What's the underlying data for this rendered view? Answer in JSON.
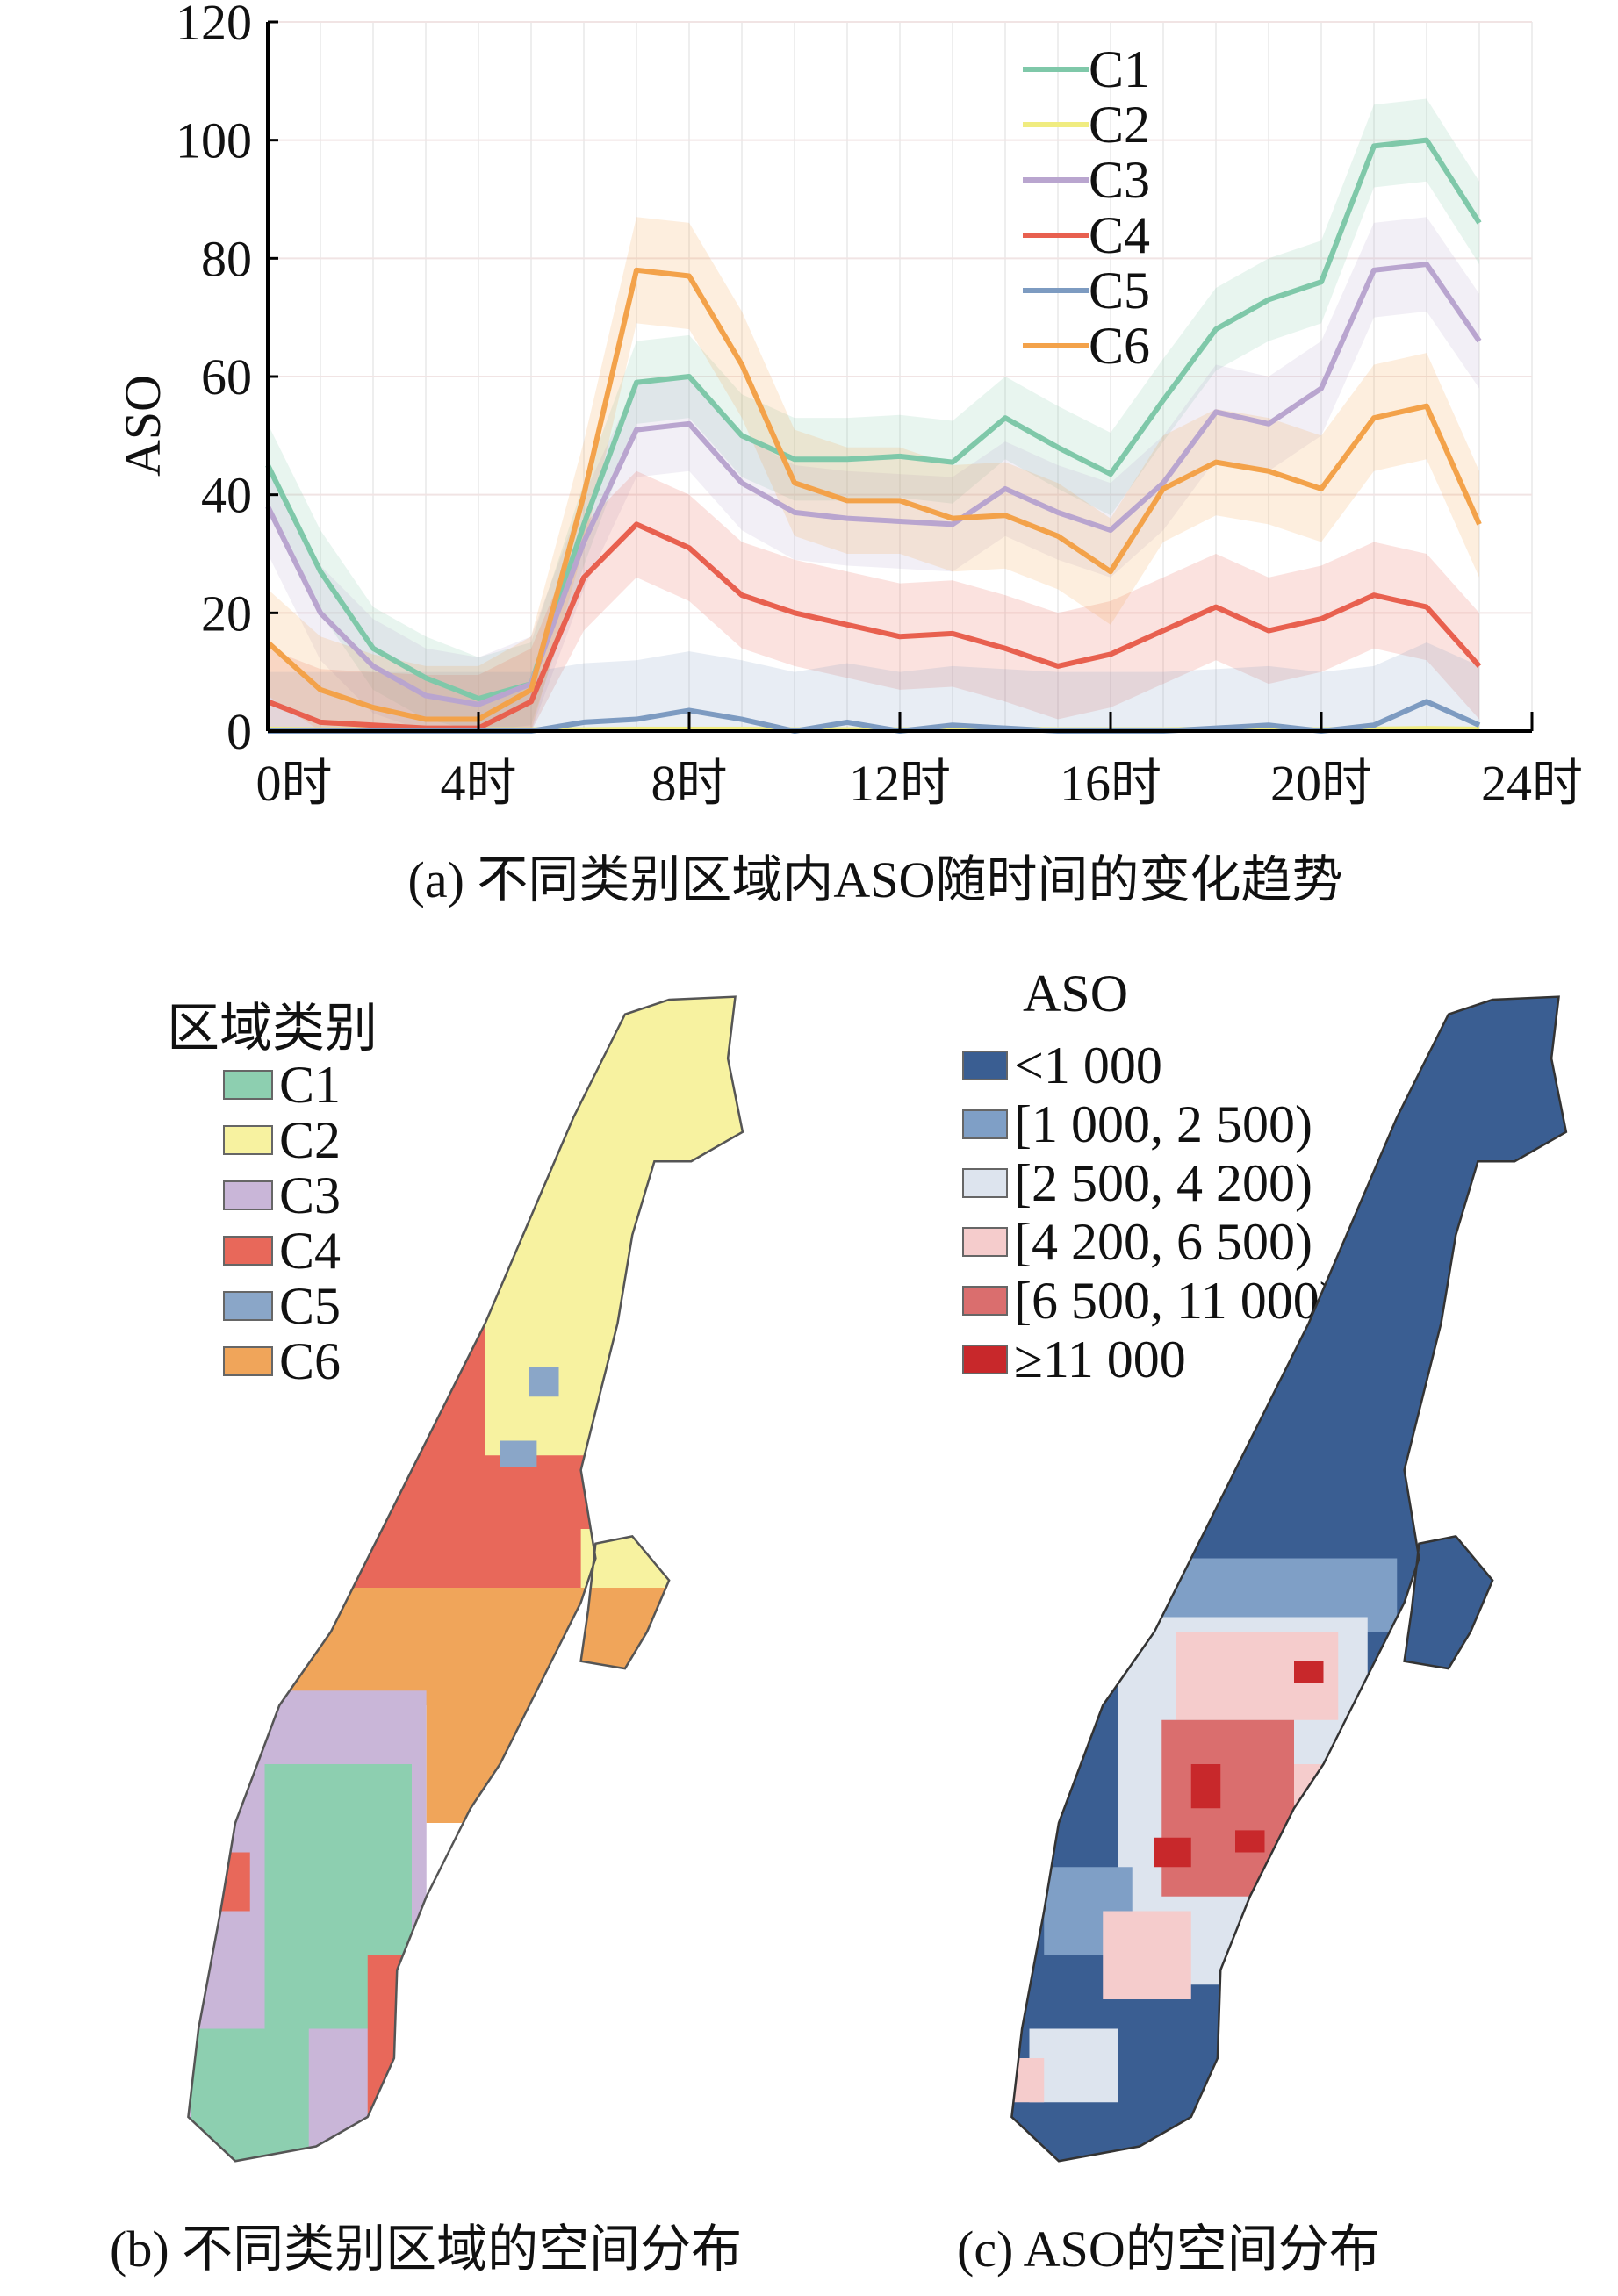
{
  "chart_data": {
    "type": "line",
    "title": "",
    "caption": "(a) 不同类别区域内ASO随时间的变化趋势",
    "xlabel": "",
    "ylabel": "ASO",
    "ylim": [
      0,
      120
    ],
    "yticks": [
      "0",
      "20",
      "40",
      "60",
      "80",
      "100",
      "120"
    ],
    "xticks": [
      "0时",
      "4时",
      "8时",
      "12时",
      "16时",
      "20时",
      "24时"
    ],
    "x": [
      0,
      1,
      2,
      3,
      4,
      5,
      6,
      7,
      8,
      9,
      10,
      11,
      12,
      13,
      14,
      15,
      16,
      17,
      18,
      19,
      20,
      21,
      22,
      23
    ],
    "grid": true,
    "legend_placement": "top-right",
    "series": [
      {
        "name": "C1",
        "color": "#7fc8a9",
        "spread": 7,
        "values": [
          45,
          27,
          14,
          9,
          5.5,
          8,
          35,
          59,
          60,
          50,
          46,
          46,
          46.5,
          45.5,
          53,
          48,
          43.5,
          56,
          68,
          73,
          76,
          99,
          100,
          86
        ]
      },
      {
        "name": "C2",
        "color": "#f0ec80",
        "spread": 0.5,
        "values": [
          0.3,
          0.2,
          0.2,
          0.2,
          0.2,
          0.2,
          0.2,
          0.3,
          0.3,
          0.3,
          0.2,
          0.2,
          0.2,
          0.2,
          0.3,
          0.2,
          0.2,
          0.2,
          0.3,
          0.3,
          0.2,
          0.3,
          0.4,
          0.3
        ]
      },
      {
        "name": "C3",
        "color": "#b9a5cf",
        "spread": 8,
        "values": [
          38,
          20,
          11,
          6,
          4.5,
          8,
          32,
          51,
          52,
          42,
          37,
          36,
          35.5,
          35,
          41,
          37,
          34,
          42,
          54,
          52,
          58,
          78,
          79,
          66
        ]
      },
      {
        "name": "C4",
        "color": "#e8604f",
        "spread": 9,
        "values": [
          5,
          1.5,
          1,
          0.5,
          0.5,
          5,
          26,
          35,
          31,
          23,
          20,
          18,
          16,
          16.5,
          14,
          11,
          13,
          17,
          21,
          17,
          19,
          23,
          21,
          11
        ]
      },
      {
        "name": "C5",
        "color": "#7d9bc1",
        "spread": 10,
        "values": [
          0,
          0,
          0,
          0,
          0,
          0,
          1.5,
          2,
          3.5,
          2,
          0,
          1.5,
          0,
          1,
          0.5,
          0,
          0,
          0,
          0.5,
          1,
          0,
          1,
          5,
          1
        ]
      },
      {
        "name": "C6",
        "color": "#f3a24a",
        "spread": 9,
        "values": [
          15,
          7,
          4,
          2,
          2,
          7,
          40,
          78,
          77,
          62,
          42,
          39,
          39,
          36,
          36.5,
          33,
          27,
          41,
          45.5,
          44,
          41,
          53,
          55,
          35
        ]
      }
    ]
  },
  "map_b": {
    "legend_title": "区域类别",
    "items": [
      {
        "label": "C1",
        "color": "#8dcfb0"
      },
      {
        "label": "C2",
        "color": "#f7f2a0"
      },
      {
        "label": "C3",
        "color": "#c9b6d8"
      },
      {
        "label": "C4",
        "color": "#e8685a"
      },
      {
        "label": "C5",
        "color": "#8aa6c8"
      },
      {
        "label": "C6",
        "color": "#f0a55a"
      }
    ],
    "caption": "(b) 不同类别区域的空间分布"
  },
  "map_c": {
    "legend_title": "ASO",
    "items": [
      {
        "label": "<1 000",
        "color": "#3a5e92"
      },
      {
        "label": "[1 000, 2 500)",
        "color": "#7f9fc6"
      },
      {
        "label": "[2 500, 4 200)",
        "color": "#dde4ee"
      },
      {
        "label": "[4 200, 6 500)",
        "color": "#f5cccc"
      },
      {
        "label": "[6 500, 11 000)",
        "color": "#da6e6e"
      },
      {
        "label": "≥11 000",
        "color": "#c8282b"
      }
    ],
    "caption": "(c) ASO的空间分布"
  }
}
